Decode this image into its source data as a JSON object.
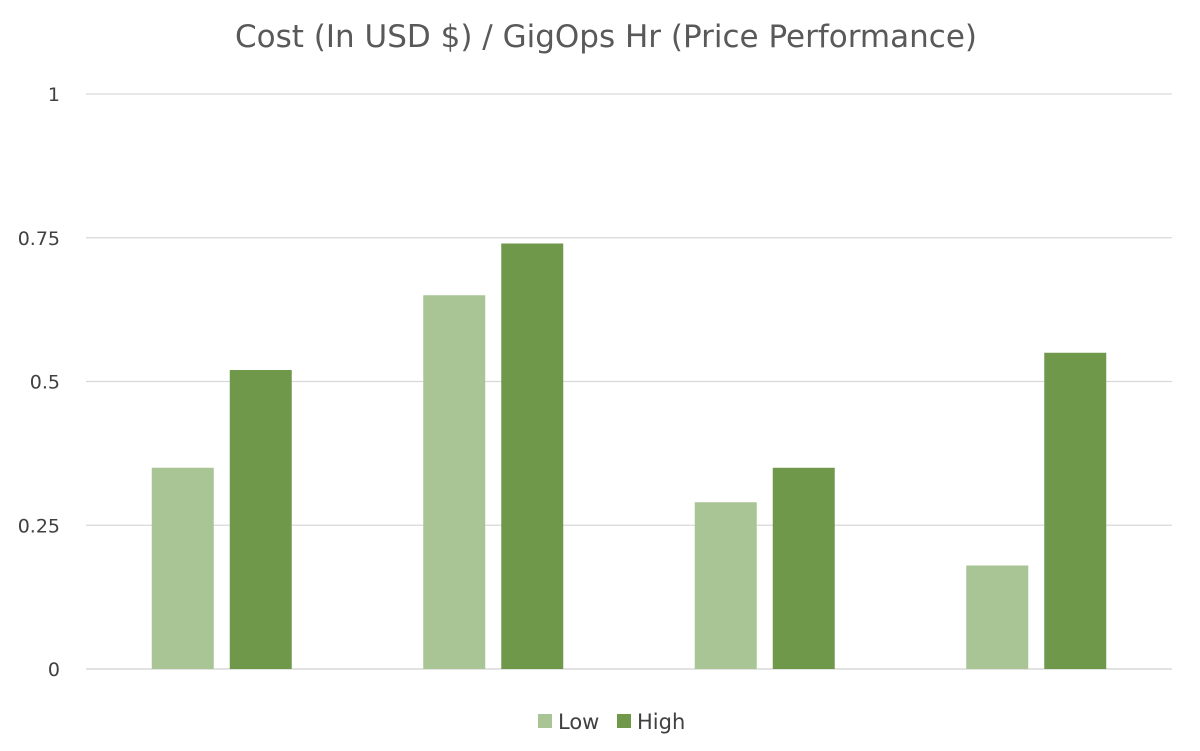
{
  "chart_data": {
    "type": "bar",
    "title": "Cost (In USD $) / GigOps Hr (Price Performance)",
    "xlabel": "",
    "ylabel": "",
    "categories": [
      "",
      "",
      "",
      ""
    ],
    "series": [
      {
        "name": "Low",
        "values": [
          0.35,
          0.65,
          0.29,
          0.18
        ],
        "color": "#a9c596"
      },
      {
        "name": "High",
        "values": [
          0.52,
          0.74,
          0.35,
          0.55
        ],
        "color": "#70984a"
      }
    ],
    "ylim": [
      0,
      1
    ],
    "yticks": [
      0,
      0.25,
      0.5,
      0.75,
      1
    ],
    "ytick_labels": [
      "0",
      "0.25",
      "0.5",
      "0.75",
      "1"
    ],
    "grid": true,
    "legend": "bottom"
  }
}
